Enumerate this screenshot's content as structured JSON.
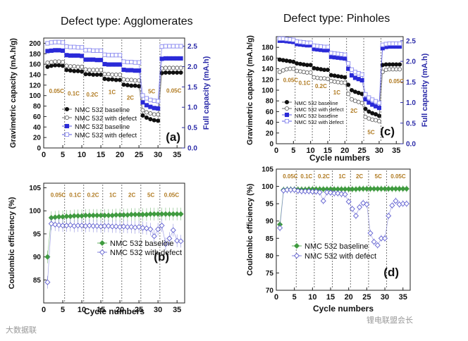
{
  "titles": {
    "left": "Defect type: Agglomerates",
    "right": "Defect type: Pinholes"
  },
  "watermarks": {
    "left": "大数据联",
    "right": "锂电联盟会长"
  },
  "colors": {
    "black": "#111111",
    "gray_line": "#666666",
    "blue": "#2a2ad8",
    "light_blue": "#8a8af0",
    "green": "#3f9b3f",
    "purple": "#6060d0",
    "rate_text": "#b07a20",
    "right_axis": "#2a2aa8"
  },
  "chart_data": [
    {
      "id": "a",
      "type": "scatter",
      "panel_label": "(a)",
      "title": "",
      "xlabel": "",
      "ylabel": "Gravimetric capacity (mA.h/g)",
      "ylabel_right": "Full capacity (mA.h)",
      "xlim": [
        0,
        37
      ],
      "ylim": [
        0,
        210
      ],
      "ylim_right": [
        0,
        2.7
      ],
      "xticks": [
        0,
        5,
        10,
        15,
        20,
        25,
        30,
        35
      ],
      "yticks": [
        0,
        20,
        40,
        60,
        80,
        100,
        120,
        140,
        160,
        180,
        200
      ],
      "yticks_right": [
        0.0,
        0.5,
        1.0,
        1.5,
        2.0,
        2.5
      ],
      "rate_labels": [
        {
          "text": "0.05C",
          "x": 1.4,
          "y": 105
        },
        {
          "text": "0.1C",
          "x": 6.3,
          "y": 100
        },
        {
          "text": "0.2C",
          "x": 11.2,
          "y": 98
        },
        {
          "text": "1C",
          "x": 17.0,
          "y": 103
        },
        {
          "text": "2C",
          "x": 21.8,
          "y": 92
        },
        {
          "text": "5C",
          "x": 27.4,
          "y": 104
        },
        {
          "text": "0.05C",
          "x": 32.2,
          "y": 106
        }
      ],
      "dividers": [
        5.5,
        10.5,
        15.5,
        20.5,
        25.5,
        30.5
      ],
      "legend": [
        "NMC 532 baseline",
        "NMC 532 with defect",
        "NMC 532 baseline",
        "NMC 532 with defect"
      ],
      "x": [
        1,
        2,
        3,
        4,
        5,
        6,
        7,
        8,
        9,
        10,
        11,
        12,
        13,
        14,
        15,
        16,
        17,
        18,
        19,
        20,
        21,
        22,
        23,
        24,
        25,
        26,
        27,
        28,
        29,
        30,
        31,
        32,
        33,
        34,
        35,
        36
      ],
      "series": [
        {
          "name": "NMC 532 baseline",
          "axis": "left",
          "marker": "circle-filled",
          "values": [
            155,
            157,
            158,
            158,
            157,
            149,
            148,
            147,
            147,
            146,
            141,
            141,
            140,
            140,
            140,
            132,
            131,
            131,
            130,
            130,
            121,
            120,
            119,
            119,
            118,
            62,
            58,
            55,
            53,
            52,
            143,
            144,
            144,
            144,
            144,
            144
          ]
        },
        {
          "name": "NMC 532 with defect",
          "axis": "left",
          "marker": "circle-open",
          "values": [
            163,
            164,
            165,
            165,
            164,
            157,
            156,
            156,
            155,
            155,
            150,
            149,
            149,
            149,
            149,
            141,
            141,
            140,
            140,
            140,
            131,
            130,
            130,
            129,
            129,
            72,
            68,
            66,
            64,
            64,
            152,
            153,
            153,
            153,
            153,
            153
          ]
        },
        {
          "name": "NMC 532 baseline",
          "axis": "right",
          "marker": "square-filled",
          "values": [
            2.38,
            2.39,
            2.4,
            2.4,
            2.39,
            2.28,
            2.27,
            2.27,
            2.27,
            2.26,
            2.17,
            2.17,
            2.17,
            2.16,
            2.16,
            2.06,
            2.05,
            2.05,
            2.05,
            2.05,
            1.92,
            1.91,
            1.91,
            1.9,
            1.9,
            1.12,
            1.05,
            1.01,
            0.98,
            0.97,
            2.19,
            2.2,
            2.2,
            2.2,
            2.2,
            2.2
          ]
        },
        {
          "name": "NMC 532 with defect",
          "axis": "right",
          "marker": "square-open",
          "values": [
            2.57,
            2.59,
            2.6,
            2.6,
            2.59,
            2.49,
            2.48,
            2.48,
            2.47,
            2.47,
            2.4,
            2.4,
            2.39,
            2.39,
            2.39,
            2.29,
            2.28,
            2.28,
            2.28,
            2.28,
            2.12,
            2.11,
            2.11,
            2.1,
            2.1,
            1.29,
            1.22,
            1.18,
            1.16,
            1.15,
            2.49,
            2.5,
            2.5,
            2.5,
            2.5,
            2.5
          ]
        }
      ]
    },
    {
      "id": "b",
      "type": "scatter",
      "panel_label": "(b)",
      "title": "",
      "xlabel": "Cycle numbers",
      "ylabel": "Coulombic efficiency (%)",
      "xlim": [
        0,
        37
      ],
      "ylim": [
        80,
        106
      ],
      "xticks": [
        0,
        5,
        10,
        15,
        20,
        25,
        30,
        35
      ],
      "yticks": [
        85,
        90,
        95,
        100,
        105
      ],
      "rate_labels": [
        {
          "text": "0.05C",
          "x": 1.8,
          "y": 103
        },
        {
          "text": "0.1C",
          "x": 6.7,
          "y": 103
        },
        {
          "text": "0.2C",
          "x": 11.4,
          "y": 103
        },
        {
          "text": "1C",
          "x": 17.2,
          "y": 103
        },
        {
          "text": "2C",
          "x": 22.2,
          "y": 103
        },
        {
          "text": "5C",
          "x": 27.2,
          "y": 103
        },
        {
          "text": "0.05C",
          "x": 31.6,
          "y": 103
        }
      ],
      "dividers": [
        5.5,
        10.5,
        15.5,
        20.5,
        25.5,
        30.5
      ],
      "legend": [
        "NMC 532 baseline",
        "NMC 532 with defect"
      ],
      "x": [
        1,
        2,
        3,
        4,
        5,
        6,
        7,
        8,
        9,
        10,
        11,
        12,
        13,
        14,
        15,
        16,
        17,
        18,
        19,
        20,
        21,
        22,
        23,
        24,
        25,
        26,
        27,
        28,
        29,
        30,
        31,
        32,
        33,
        34,
        35,
        36
      ],
      "series": [
        {
          "name": "NMC 532 baseline",
          "axis": "left",
          "marker": "diamond-filled",
          "values": [
            90,
            98.5,
            98.6,
            98.7,
            98.7,
            98.8,
            98.8,
            98.9,
            98.9,
            98.9,
            99,
            99,
            99,
            99,
            99,
            99,
            99,
            99,
            99.1,
            99.1,
            99.1,
            99.1,
            99.2,
            99.2,
            99.2,
            99.2,
            99.2,
            99.3,
            99.3,
            99.3,
            99.3,
            99.3,
            99.3,
            99.3,
            99.3,
            99.3
          ]
        },
        {
          "name": "NMC 532 with defect",
          "axis": "left",
          "marker": "diamond-open",
          "values": [
            84.5,
            97.2,
            97.0,
            96.9,
            96.8,
            96.8,
            96.9,
            96.7,
            96.8,
            96.8,
            96.7,
            96.8,
            96.7,
            96.7,
            96.6,
            96.7,
            96.7,
            96.6,
            96.6,
            96.5,
            96.6,
            96.5,
            96.5,
            96.4,
            96.5,
            96.3,
            96.2,
            96.0,
            94.5,
            96.0,
            96.8,
            92.8,
            94.0,
            95.8,
            93.5,
            93.4
          ]
        }
      ]
    },
    {
      "id": "c",
      "type": "scatter",
      "panel_label": "(c)",
      "title": "",
      "xlabel": "Cycle numbers",
      "ylabel": "Gravimetric capacity (mA.h/g)",
      "ylabel_right": "Full capacity (mA.h)",
      "xlim": [
        0,
        37
      ],
      "ylim": [
        0,
        200
      ],
      "ylim_right": [
        0,
        2.6
      ],
      "xticks": [
        0,
        5,
        10,
        15,
        20,
        25,
        30,
        35
      ],
      "yticks": [
        0,
        20,
        40,
        60,
        80,
        100,
        120,
        140,
        160,
        180
      ],
      "yticks_right": [
        0.0,
        0.5,
        1.0,
        1.5,
        2.0,
        2.5
      ],
      "rate_labels": [
        {
          "text": "0.05C",
          "x": 2.0,
          "y": 115
        },
        {
          "text": "0.1C",
          "x": 6.5,
          "y": 110
        },
        {
          "text": "0.2C",
          "x": 11.3,
          "y": 104
        },
        {
          "text": "1C",
          "x": 16.6,
          "y": 92
        },
        {
          "text": "2C",
          "x": 21.6,
          "y": 58
        },
        {
          "text": "5C",
          "x": 26.6,
          "y": 18
        },
        {
          "text": "0.05C",
          "x": 32.8,
          "y": 113
        }
      ],
      "dividers": [
        5.5,
        10.5,
        15.5,
        20.5,
        25.5,
        30.5
      ],
      "legend": [
        "NMC 532 baseline",
        "NMC 532 with defect",
        "NMC 532 baseline",
        "NMC 532 with defect"
      ],
      "x": [
        1,
        2,
        3,
        4,
        5,
        6,
        7,
        8,
        9,
        10,
        11,
        12,
        13,
        14,
        15,
        16,
        17,
        18,
        19,
        20,
        21,
        22,
        23,
        24,
        25,
        26,
        27,
        28,
        29,
        30,
        31,
        32,
        33,
        34,
        35,
        36
      ],
      "series": [
        {
          "name": "NMC 532 baseline",
          "axis": "left",
          "marker": "circle-filled",
          "values": [
            157,
            156,
            155,
            154,
            153,
            150,
            149,
            148,
            147,
            147,
            141,
            140,
            139,
            138,
            138,
            128,
            127,
            126,
            125,
            124,
            110,
            100,
            97,
            95,
            93,
            65,
            60,
            57,
            55,
            52,
            147,
            148,
            148,
            148,
            148,
            148
          ]
        },
        {
          "name": "NMC 532 with defect",
          "axis": "left",
          "marker": "circle-open",
          "values": [
            134,
            137,
            139,
            140,
            140,
            136,
            135,
            134,
            133,
            133,
            124,
            123,
            122,
            122,
            121,
            117,
            116,
            115,
            114,
            114,
            93,
            83,
            80,
            78,
            76,
            50,
            47,
            45,
            44,
            42,
            134,
            138,
            139,
            139,
            139,
            139
          ]
        },
        {
          "name": "NMC 532 baseline",
          "axis": "right",
          "marker": "square-filled",
          "values": [
            2.5,
            2.5,
            2.49,
            2.48,
            2.47,
            2.42,
            2.41,
            2.4,
            2.39,
            2.39,
            2.3,
            2.29,
            2.28,
            2.27,
            2.27,
            2.11,
            2.1,
            2.09,
            2.08,
            2.07,
            1.82,
            1.66,
            1.6,
            1.57,
            1.54,
            1.08,
            1.0,
            0.95,
            0.91,
            0.87,
            2.32,
            2.35,
            2.36,
            2.36,
            2.36,
            2.36
          ]
        },
        {
          "name": "NMC 532 with defect",
          "axis": "right",
          "marker": "square-open",
          "values": [
            2.55,
            2.55,
            2.54,
            2.53,
            2.52,
            2.48,
            2.47,
            2.46,
            2.45,
            2.45,
            2.38,
            2.37,
            2.36,
            2.35,
            2.35,
            2.2,
            2.19,
            2.18,
            2.17,
            2.16,
            1.95,
            1.8,
            1.74,
            1.71,
            1.68,
            1.2,
            1.12,
            1.07,
            1.03,
            0.99,
            2.4,
            2.42,
            2.43,
            2.43,
            2.43,
            2.43
          ]
        }
      ]
    },
    {
      "id": "d",
      "type": "scatter",
      "panel_label": "(d)",
      "title": "",
      "xlabel": "Cycle numbers",
      "ylabel": "Coulombic efficiency (%)",
      "xlim": [
        0,
        37
      ],
      "ylim": [
        70,
        105
      ],
      "xticks": [
        0,
        5,
        10,
        15,
        20,
        25,
        30,
        35
      ],
      "yticks": [
        70,
        75,
        80,
        85,
        90,
        95,
        100,
        105
      ],
      "rate_labels": [
        {
          "text": "0.05C",
          "x": 1.8,
          "y": 102.4
        },
        {
          "text": "0.1C",
          "x": 6.7,
          "y": 102.4
        },
        {
          "text": "0.2C",
          "x": 11.5,
          "y": 102.4
        },
        {
          "text": "1C",
          "x": 17.2,
          "y": 102.4
        },
        {
          "text": "2C",
          "x": 22.0,
          "y": 102.4
        },
        {
          "text": "5C",
          "x": 27.2,
          "y": 102.4
        },
        {
          "text": "0.05C",
          "x": 31.6,
          "y": 102.4
        }
      ],
      "dividers": [
        5.5,
        10.5,
        15.5,
        20.5,
        25.5,
        30.5
      ],
      "legend": [
        "NMC 532 baseline",
        "NMC 532 with defect"
      ],
      "x": [
        1,
        2,
        3,
        4,
        5,
        6,
        7,
        8,
        9,
        10,
        11,
        12,
        13,
        14,
        15,
        16,
        17,
        18,
        19,
        20,
        21,
        22,
        23,
        24,
        25,
        26,
        27,
        28,
        29,
        30,
        31,
        32,
        33,
        34,
        35,
        36
      ],
      "series": [
        {
          "name": "NMC 532 baseline",
          "axis": "left",
          "marker": "diamond-filled",
          "values": [
            89,
            99,
            99.1,
            99.1,
            99.1,
            99.1,
            99.1,
            99.1,
            99.2,
            99.2,
            99.2,
            99.2,
            99.2,
            99.2,
            99.2,
            99.2,
            99.2,
            99.2,
            99.2,
            99.2,
            99.2,
            99.2,
            99.3,
            99.3,
            99.3,
            99.3,
            99.3,
            99.3,
            99.3,
            99.3,
            99.3,
            99.3,
            99.3,
            99.3,
            99.3,
            99.3
          ]
        },
        {
          "name": "NMC 532 with defect",
          "axis": "left",
          "marker": "diamond-open",
          "values": [
            88,
            98.8,
            99.0,
            99.0,
            99.0,
            98.7,
            98.6,
            98.6,
            98.6,
            98.5,
            98.5,
            98.3,
            95.8,
            98.3,
            98.2,
            98.0,
            98.0,
            97.8,
            97.7,
            95.6,
            93.5,
            91.5,
            94.0,
            95.2,
            94.8,
            86.5,
            84.0,
            83.0,
            85.0,
            85.0,
            91.5,
            94.5,
            95.8,
            94.8,
            95.0,
            95.0
          ]
        }
      ]
    }
  ]
}
